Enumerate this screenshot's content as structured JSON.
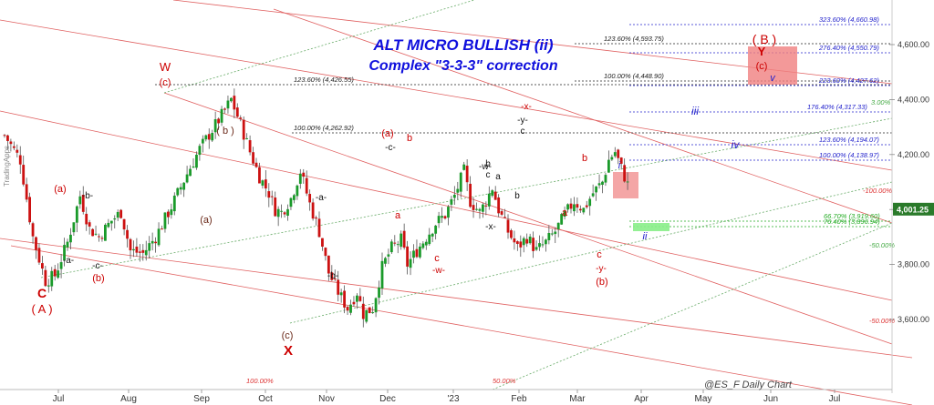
{
  "chart_data": {
    "type": "candlestick",
    "title": "ALT MICRO BULLISH (ii)",
    "subtitle": "Complex \"3-3-3\" correction",
    "footer": "@ES_F Daily Chart",
    "watermark": "TradingApps",
    "last_price": "4,001.25",
    "x_axis": {
      "months": [
        "Jul",
        "Aug",
        "Sep",
        "Oct",
        "Nov",
        "Dec",
        "'23",
        "Feb",
        "Mar",
        "Apr",
        "May",
        "Jun",
        "Jul"
      ]
    },
    "y_axis": {
      "range": [
        3520,
        4720
      ],
      "ticks": [
        "3,600.00",
        "3,800.00",
        "4,000.00",
        "4,200.00",
        "4,400.00",
        "4,600.00"
      ],
      "tick_values": [
        3600,
        3800,
        4000,
        4200,
        4400,
        4600
      ]
    },
    "series": [
      {
        "kind": "daily-candles",
        "x_index_range": [
          0,
          200
        ],
        "values": [
          [
            0,
            4270
          ],
          [
            5,
            4180
          ],
          [
            9,
            3900
          ],
          [
            13,
            3740
          ],
          [
            16,
            3760
          ],
          [
            20,
            3880
          ],
          [
            24,
            4050
          ],
          [
            27,
            3930
          ],
          [
            30,
            3900
          ],
          [
            34,
            3960
          ],
          [
            37,
            3990
          ],
          [
            40,
            3850
          ],
          [
            44,
            3840
          ],
          [
            48,
            3900
          ],
          [
            53,
            4010
          ],
          [
            58,
            4130
          ],
          [
            62,
            4220
          ],
          [
            66,
            4290
          ],
          [
            70,
            4360
          ],
          [
            72,
            4400
          ],
          [
            75,
            4310
          ],
          [
            78,
            4210
          ],
          [
            81,
            4120
          ],
          [
            84,
            4060
          ],
          [
            86,
            4000
          ],
          [
            88,
            3990
          ],
          [
            91,
            4040
          ],
          [
            94,
            4140
          ],
          [
            97,
            4020
          ],
          [
            100,
            3920
          ],
          [
            103,
            3770
          ],
          [
            106,
            3700
          ],
          [
            109,
            3640
          ],
          [
            112,
            3700
          ],
          [
            114,
            3620
          ],
          [
            117,
            3640
          ],
          [
            120,
            3790
          ],
          [
            123,
            3860
          ],
          [
            126,
            3890
          ],
          [
            128,
            3800
          ],
          [
            131,
            3850
          ],
          [
            134,
            3900
          ],
          [
            137,
            3950
          ],
          [
            140,
            3980
          ],
          [
            143,
            4050
          ],
          [
            146,
            4140
          ],
          [
            148,
            4030
          ],
          [
            151,
            3990
          ],
          [
            153,
            4030
          ],
          [
            155,
            4080
          ],
          [
            157,
            4000
          ],
          [
            160,
            3920
          ],
          [
            163,
            3860
          ],
          [
            166,
            3900
          ],
          [
            169,
            3850
          ],
          [
            172,
            3880
          ],
          [
            175,
            3920
          ],
          [
            178,
            3980
          ],
          [
            181,
            4030
          ],
          [
            184,
            4000
          ],
          [
            187,
            4060
          ],
          [
            190,
            4100
          ],
          [
            192,
            4180
          ],
          [
            194,
            4210
          ],
          [
            196,
            4150
          ],
          [
            198,
            4090
          ],
          [
            200,
            4000
          ]
        ]
      }
    ],
    "fib_levels": [
      {
        "label": "323.60% (4,660.98)",
        "value": 4660.98,
        "color": "#2222cc"
      },
      {
        "label": "123.60% (4,593.75)",
        "value": 4593.75,
        "color": "#222222"
      },
      {
        "label": "276.40% (4,550.79)",
        "value": 4550.79,
        "color": "#2222cc"
      },
      {
        "label": "100.00% (4,448.90)",
        "value": 4448.9,
        "color": "#222222"
      },
      {
        "label": "123.60% (4,426.55)",
        "value": 4426.55,
        "color": "#222222"
      },
      {
        "label": "223.60% (4,427.62)",
        "value": 4427.62,
        "color": "#2222cc"
      },
      {
        "label": "176.40% (4,317.33)",
        "value": 4317.33,
        "color": "#2222cc"
      },
      {
        "label": "100.00% (4,262.92)",
        "value": 4262.92,
        "color": "#222222"
      },
      {
        "label": "123.60% (4,194.07)",
        "value": 4194.07,
        "color": "#2222cc"
      },
      {
        "label": "100.00% (4,138.97)",
        "value": 4138.97,
        "color": "#2222cc"
      },
      {
        "label": "66.70% (3,919.60)",
        "value": 3919.6,
        "color": "#22aa22"
      },
      {
        "label": "76.40% (3,896.94)",
        "value": 3896.94,
        "color": "#22aa22"
      }
    ],
    "channel_labels": [
      "100.00%",
      "50.00%",
      "-100.00%",
      "-50.00%",
      "-50.00%",
      "3.00%"
    ],
    "wave_labels": [
      {
        "text": "C",
        "color": "#cc0000"
      },
      {
        "text": "( A )",
        "color": "#cc0000"
      },
      {
        "text": "(a)",
        "color": "#cc0000"
      },
      {
        "text": "-a-",
        "color": "#111111"
      },
      {
        "text": "-b-",
        "color": "#111111"
      },
      {
        "text": "-c-",
        "color": "#111111"
      },
      {
        "text": "(b)",
        "color": "#cc0000"
      },
      {
        "text": "W",
        "color": "#cc0000"
      },
      {
        "text": "(c)",
        "color": "#cc0000"
      },
      {
        "text": "( b )",
        "color": "#6b2a1a"
      },
      {
        "text": "(a)",
        "color": "#6b2a1a"
      },
      {
        "text": "(c)",
        "color": "#6b2a1a"
      },
      {
        "text": "X",
        "color": "#cc0000"
      },
      {
        "text": "-a-",
        "color": "#111111"
      },
      {
        "text": "-b-",
        "color": "#111111"
      },
      {
        "text": "(a)",
        "color": "#cc0000"
      },
      {
        "text": "b",
        "color": "#cc0000"
      },
      {
        "text": "-c-",
        "color": "#111111"
      },
      {
        "text": "a",
        "color": "#cc0000"
      },
      {
        "text": "c",
        "color": "#cc0000"
      },
      {
        "text": "-w-",
        "color": "#cc0000"
      },
      {
        "text": "-w-",
        "color": "#111111"
      },
      {
        "text": "-x-",
        "color": "#111111"
      },
      {
        "text": "-x-",
        "color": "#cc0000"
      },
      {
        "text": "-y-",
        "color": "#111111"
      },
      {
        "text": "c",
        "color": "#111111"
      },
      {
        "text": "a",
        "color": "#111111"
      },
      {
        "text": "b",
        "color": "#111111"
      },
      {
        "text": "c",
        "color": "#111111"
      },
      {
        "text": "b",
        "color": "#111111"
      },
      {
        "text": "a",
        "color": "#cc0000"
      },
      {
        "text": "b",
        "color": "#cc0000"
      },
      {
        "text": "c",
        "color": "#cc0000"
      },
      {
        "text": "-y-",
        "color": "#cc0000"
      },
      {
        "text": "(b)",
        "color": "#cc0000"
      },
      {
        "text": "i",
        "color": "#2222cc"
      },
      {
        "text": "ii",
        "color": "#2222cc"
      },
      {
        "text": "iii",
        "color": "#2222cc"
      },
      {
        "text": "iv",
        "color": "#2222cc"
      },
      {
        "text": "v",
        "color": "#2222cc"
      },
      {
        "text": "( B )",
        "color": "#cc0000"
      },
      {
        "text": "Y",
        "color": "#cc0000"
      },
      {
        "text": "(c)",
        "color": "#cc0000"
      }
    ],
    "grid": false,
    "legend": "none"
  },
  "colors": {
    "up_candle": "#1a9a2a",
    "down_candle": "#cc1111",
    "channel_red": "#e06060",
    "channel_green": "#66aa66",
    "fib_blue": "#3333cc",
    "fib_black": "#333333",
    "title_blue": "#1010dd",
    "price_badge": "#2a7a2a",
    "target_box": "#f08080",
    "support_box": "#88ee88"
  }
}
